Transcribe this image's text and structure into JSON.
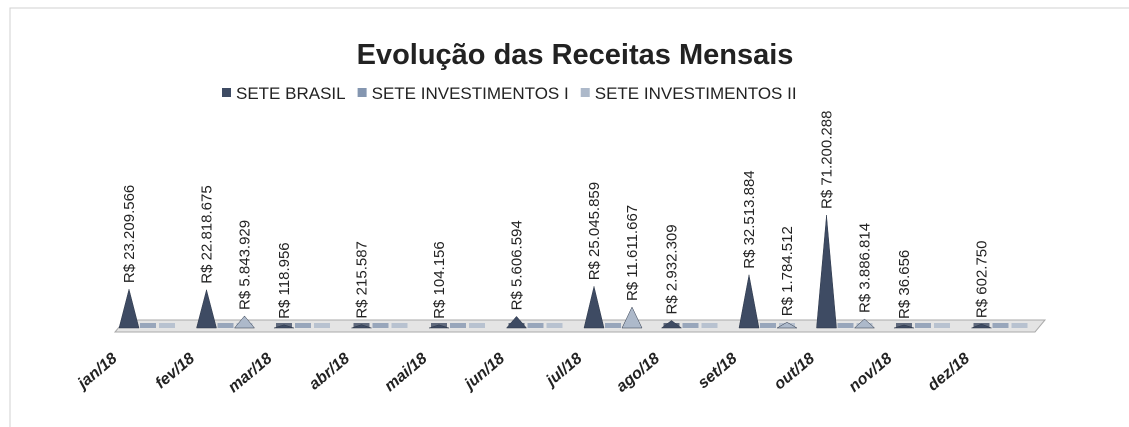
{
  "chart_data": {
    "type": "cone3d",
    "title": "Evolução das Receitas Mensais",
    "categories": [
      "jan/18",
      "fev/18",
      "mar/18",
      "abr/18",
      "mai/18",
      "jun/18",
      "jul/18",
      "ago/18",
      "set/18",
      "out/18",
      "nov/18",
      "dez/18"
    ],
    "series": [
      {
        "name": "SETE BRASIL",
        "color": "#3e4b63",
        "values": [
          23209566,
          22818675,
          118956,
          215587,
          104156,
          5606594,
          25045859,
          2932309,
          32513884,
          71200288,
          36656,
          602750
        ],
        "value_labels": [
          "R$ 23.209.566",
          "R$ 22.818.675",
          "R$ 118.956",
          "R$ 215.587",
          "R$ 104.156",
          "R$ 5.606.594",
          "R$ 25.045.859",
          "R$ 2.932.309",
          "R$ 32.513.884",
          "R$ 71.200.288",
          "R$ 36.656",
          "R$ 602.750"
        ]
      },
      {
        "name": "SETE INVESTIMENTOS I",
        "color": "#8496b0",
        "values": [
          null,
          null,
          null,
          null,
          null,
          null,
          null,
          null,
          null,
          null,
          null,
          null
        ]
      },
      {
        "name": "SETE INVESTIMENTOS II",
        "color": "#adb9ca",
        "values": [
          null,
          5843929,
          null,
          null,
          null,
          null,
          11611667,
          null,
          1784512,
          3886814,
          null,
          null
        ],
        "value_labels": [
          null,
          "R$ 5.843.929",
          null,
          null,
          null,
          null,
          "R$ 11.611.667",
          null,
          "R$ 1.784.512",
          "R$ 3.886.814",
          null,
          null
        ]
      }
    ],
    "legend": "top"
  }
}
